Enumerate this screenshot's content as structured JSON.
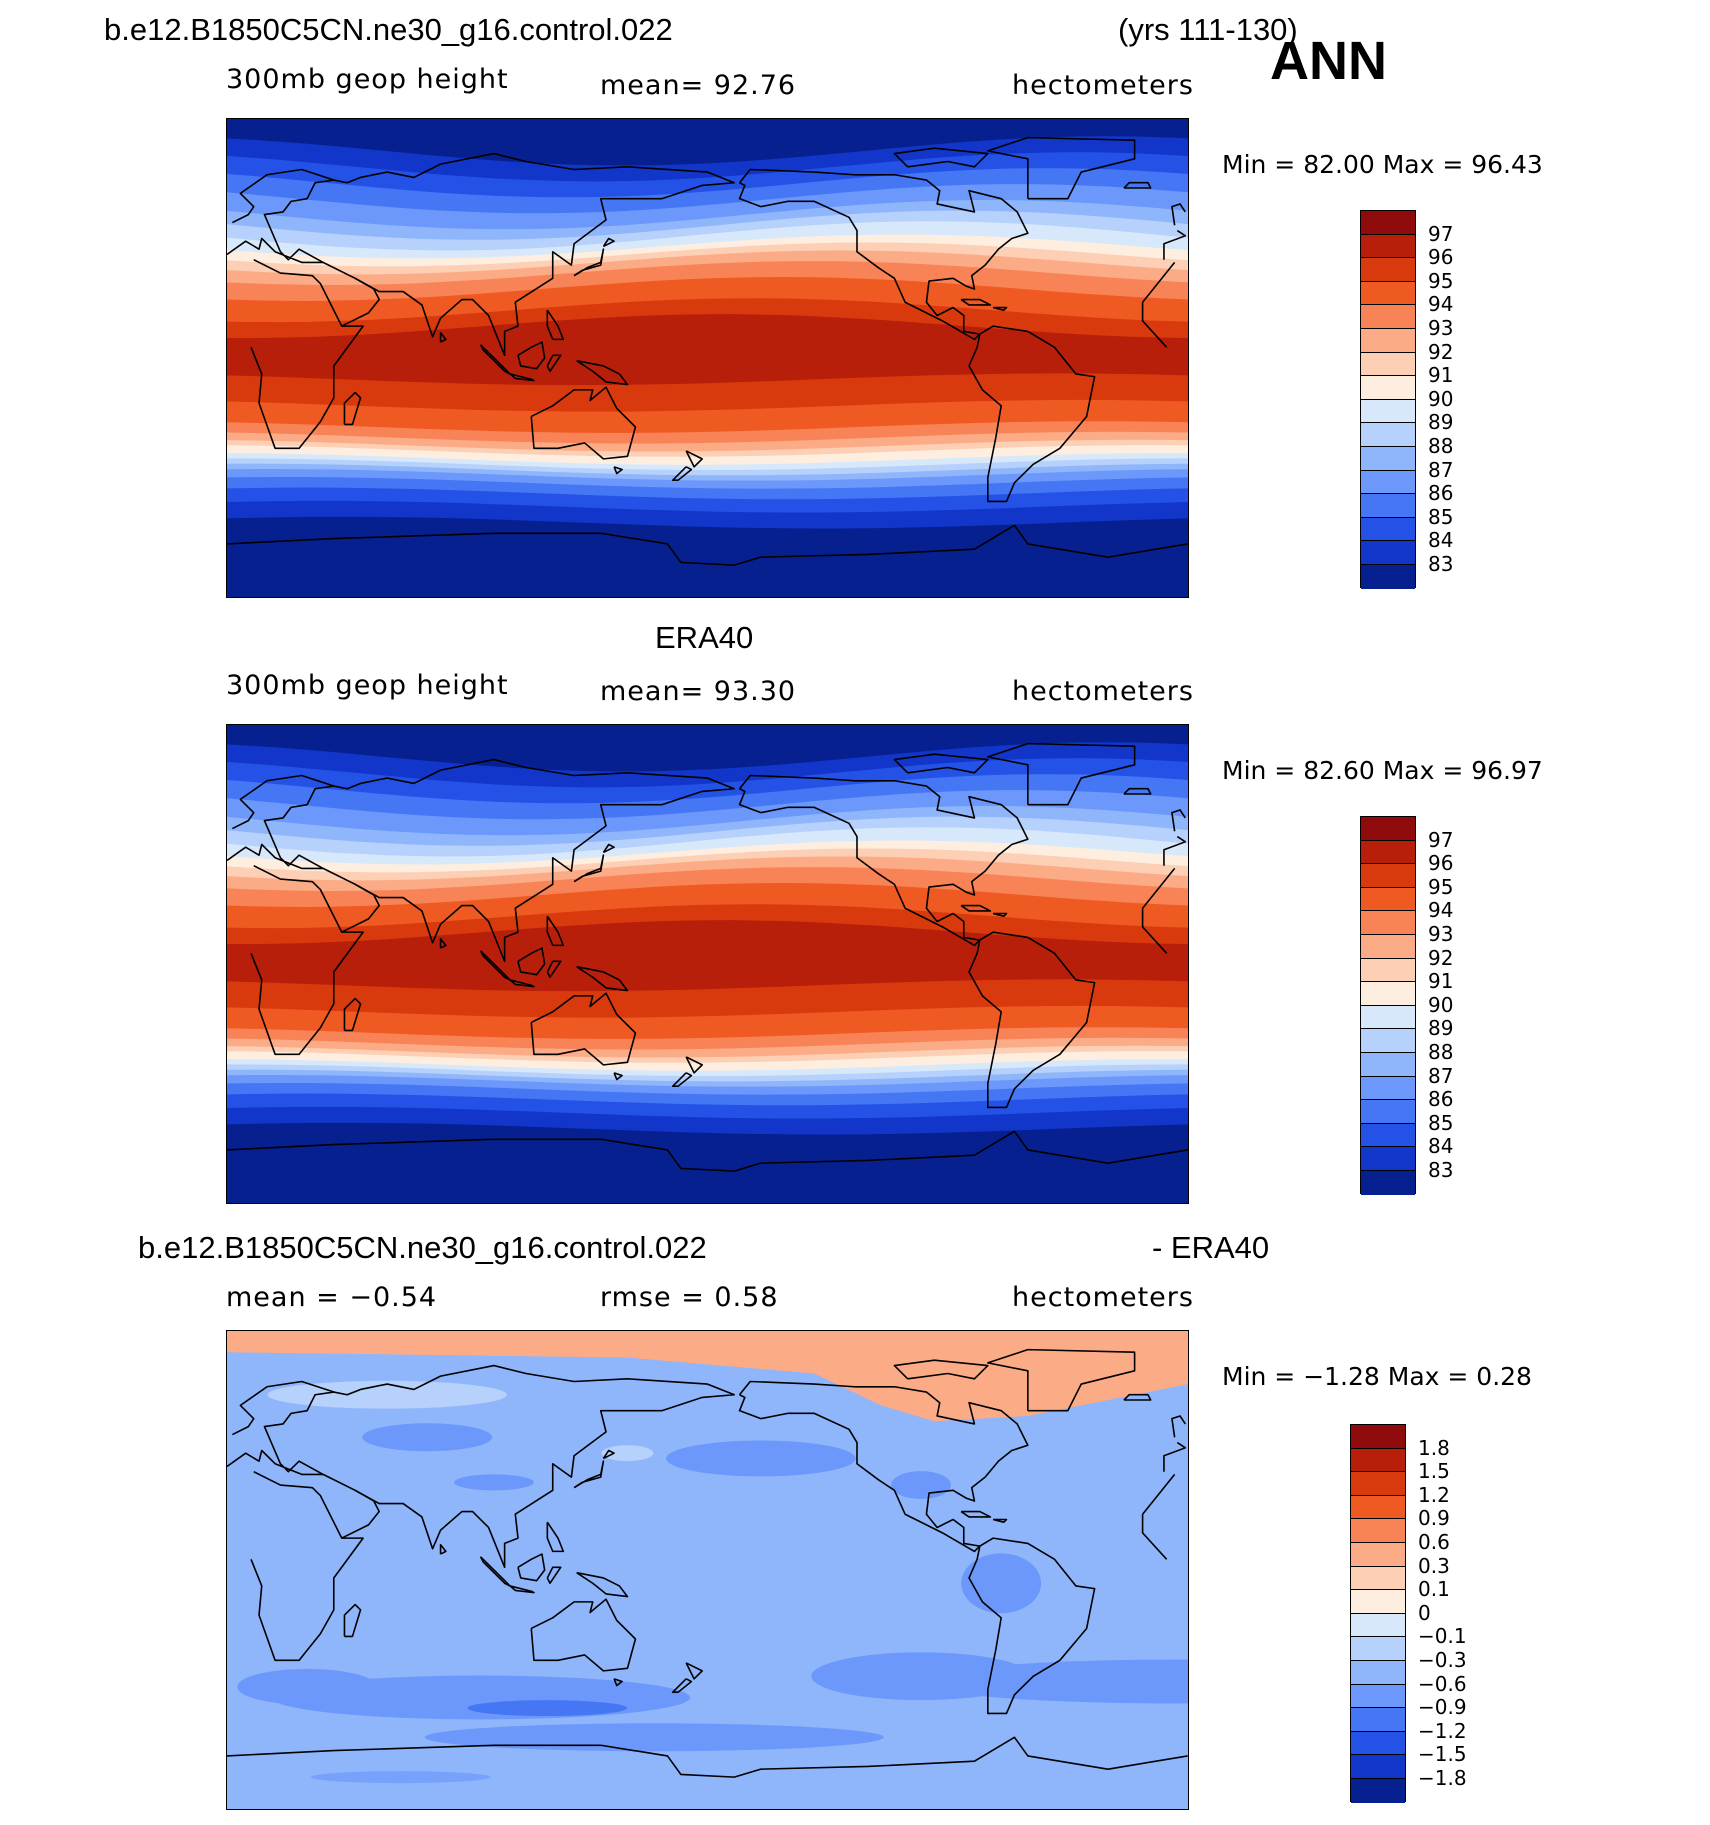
{
  "header": {
    "case_name": "b.e12.B1850C5CN.ne30_g16.control.022",
    "years": "(yrs 111-130)",
    "season": "ANN"
  },
  "panels": [
    {
      "id": "model",
      "title": "",
      "left_label": "300mb geop height",
      "center_label": "mean=   92.76",
      "right_label": "hectometers",
      "minmax": "Min =   82.00  Max =   96.43",
      "colorbar_labels": [
        "97",
        "96",
        "95",
        "94",
        "93",
        "92",
        "91",
        "90",
        "89",
        "88",
        "87",
        "86",
        "85",
        "84",
        "83"
      ],
      "colorbar_colors": [
        "#8f0a0a",
        "#b81f0a",
        "#d93a0d",
        "#ef5a23",
        "#f88357",
        "#fcab87",
        "#fdcfb5",
        "#fdeee0",
        "#d8e8fb",
        "#b6d1fb",
        "#8fb5fb",
        "#6b98fa",
        "#4577f4",
        "#2452e6",
        "#1136c9",
        "#06218f"
      ],
      "band_colors": [
        "#06218f",
        "#1136c9",
        "#2452e6",
        "#4577f4",
        "#6b98fa",
        "#8fb5fb",
        "#b6d1fb",
        "#d8e8fb",
        "#fdeee0",
        "#fdcfb5",
        "#fcab87",
        "#f88357",
        "#ef5a23",
        "#d93a0d",
        "#b81f0a"
      ]
    },
    {
      "id": "obs",
      "title": "ERA40",
      "left_label": "300mb geop height",
      "center_label": "mean=   93.30",
      "right_label": "hectometers",
      "minmax": "Min =   82.60  Max =   96.97",
      "colorbar_labels": [
        "97",
        "96",
        "95",
        "94",
        "93",
        "92",
        "91",
        "90",
        "89",
        "88",
        "87",
        "86",
        "85",
        "84",
        "83"
      ],
      "colorbar_colors": [
        "#8f0a0a",
        "#b81f0a",
        "#d93a0d",
        "#ef5a23",
        "#f88357",
        "#fcab87",
        "#fdcfb5",
        "#fdeee0",
        "#d8e8fb",
        "#b6d1fb",
        "#8fb5fb",
        "#6b98fa",
        "#4577f4",
        "#2452e6",
        "#1136c9",
        "#06218f"
      ],
      "band_colors": [
        "#06218f",
        "#1136c9",
        "#2452e6",
        "#4577f4",
        "#6b98fa",
        "#8fb5fb",
        "#b6d1fb",
        "#d8e8fb",
        "#fdeee0",
        "#fdcfb5",
        "#fcab87",
        "#f88357",
        "#ef5a23",
        "#d93a0d",
        "#b81f0a"
      ]
    },
    {
      "id": "diff",
      "title_left": "b.e12.B1850C5CN.ne30_g16.control.022",
      "title_right": "- ERA40",
      "left_label": "mean =   −0.54",
      "center_label": "rmse =    0.58",
      "right_label": "hectometers",
      "minmax": "Min =   −1.28  Max =    0.28",
      "colorbar_labels": [
        "1.8",
        "1.5",
        "1.2",
        "0.9",
        "0.6",
        "0.3",
        "0.1",
        "0",
        "−0.1",
        "−0.3",
        "−0.6",
        "−0.9",
        "−1.2",
        "−1.5",
        "−1.8"
      ],
      "colorbar_colors": [
        "#8f0a0a",
        "#b81f0a",
        "#d93a0d",
        "#ef5a23",
        "#f88357",
        "#fcab87",
        "#fdcfb5",
        "#fdeee0",
        "#d8e8fb",
        "#b6d1fb",
        "#8fb5fb",
        "#6b98fa",
        "#4577f4",
        "#2452e6",
        "#1136c9",
        "#06218f"
      ]
    }
  ]
}
